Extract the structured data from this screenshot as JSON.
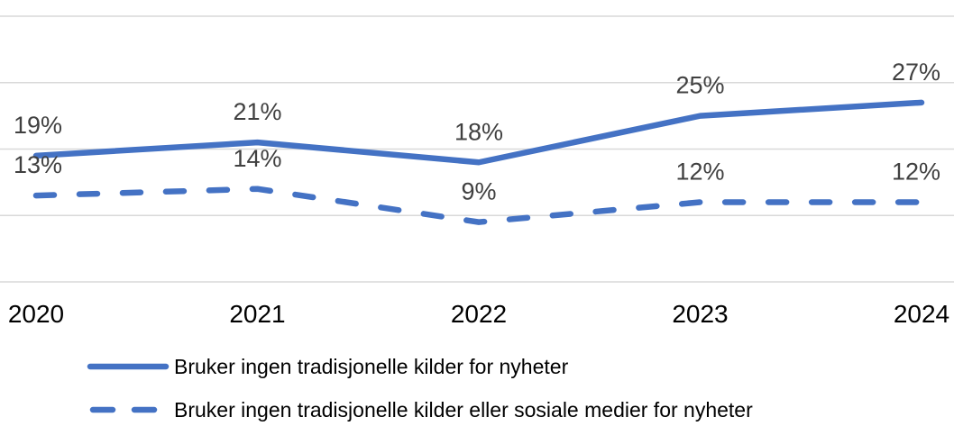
{
  "chart_data": {
    "type": "line",
    "x": [
      "2020",
      "2021",
      "2022",
      "2023",
      "2024"
    ],
    "series": [
      {
        "name": "Bruker ingen tradisjonelle kilder for nyheter",
        "style": "solid",
        "values": [
          19,
          21,
          18,
          25,
          27
        ],
        "labels": [
          "19%",
          "21%",
          "18%",
          "25%",
          "27%"
        ]
      },
      {
        "name": "Bruker ingen tradisjonelle kilder eller sosiale medier for nyheter",
        "style": "dashed",
        "values": [
          13,
          14,
          9,
          12,
          12
        ],
        "labels": [
          "13%",
          "14%",
          "9%",
          "12%",
          "12%"
        ]
      }
    ],
    "ylim": [
      0,
      40
    ],
    "grid_step": 10,
    "grid": true,
    "legend_position": "bottom",
    "colors": {
      "line": "#4472C4",
      "data_label": "#404040",
      "axis_label": "#000000",
      "gridline": "#D9D9D9",
      "background": "#FFFFFF"
    }
  }
}
